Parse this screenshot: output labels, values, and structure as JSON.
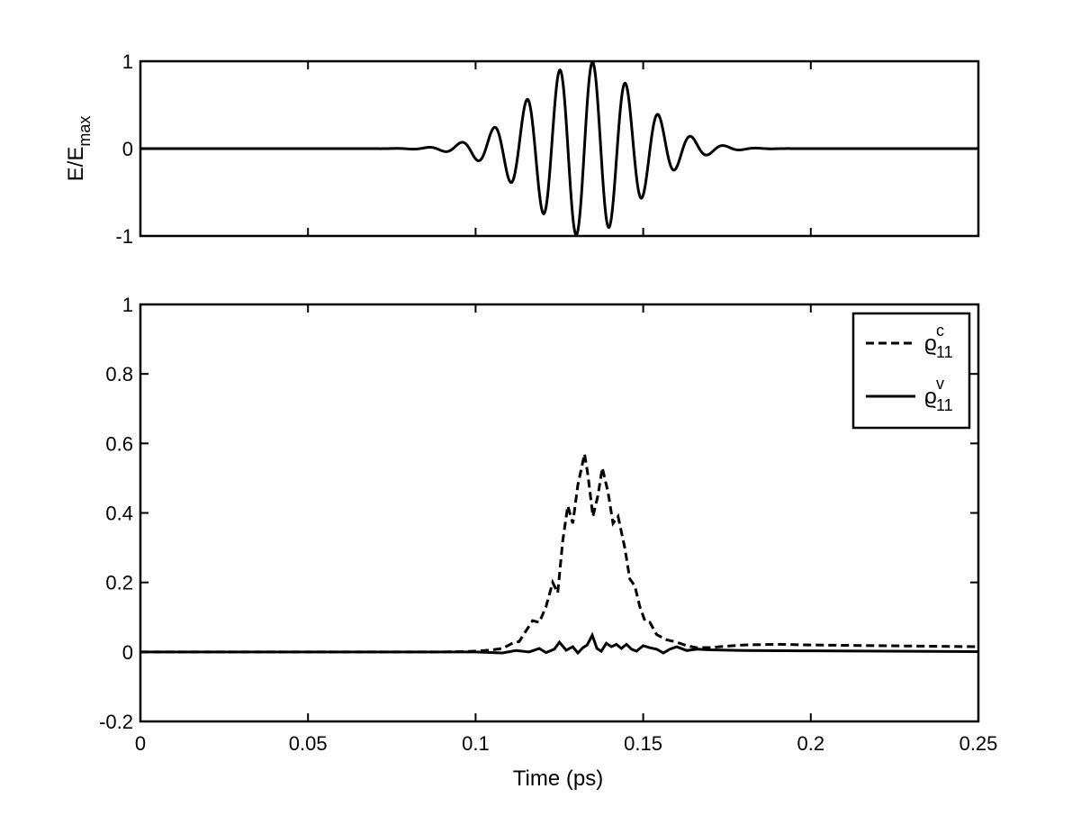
{
  "chart_data": [
    {
      "type": "line",
      "panel": "top",
      "ylabel_main": "E/E",
      "ylabel_sub": "max",
      "xlim": [
        0,
        0.25
      ],
      "ylim": [
        -1,
        1
      ],
      "xticks": [
        0,
        0.05,
        0.1,
        0.15,
        0.2,
        0.25
      ],
      "yticks": [
        -1,
        0,
        1
      ],
      "ytick_labels": [
        "-1",
        "0",
        "1"
      ],
      "grid": false,
      "line_color": "#000000",
      "series": [
        {
          "style": "solid",
          "pulse": {
            "center": 0.1325,
            "sigma": 0.016,
            "period": 0.0098,
            "phase_offset": 0.0024
          }
        }
      ]
    },
    {
      "type": "line",
      "panel": "bottom",
      "xlabel": "Time (ps)",
      "xlim": [
        0,
        0.25
      ],
      "ylim": [
        -0.2,
        1
      ],
      "xticks": [
        0,
        0.05,
        0.1,
        0.15,
        0.2,
        0.25
      ],
      "xtick_labels": [
        "0",
        "0.05",
        "0.1",
        "0.15",
        "0.2",
        "0.25"
      ],
      "yticks": [
        -0.2,
        0,
        0.2,
        0.4,
        0.6,
        0.8,
        1
      ],
      "ytick_labels": [
        "-0.2",
        "0",
        "0.2",
        "0.4",
        "0.6",
        "0.8",
        "1"
      ],
      "grid": false,
      "legend": {
        "placement": "top-right",
        "entries": [
          {
            "symbol": "ϱ",
            "sup": "c",
            "sub": "11",
            "style": "dashed"
          },
          {
            "symbol": "ϱ",
            "sup": "v",
            "sub": "11",
            "style": "solid"
          }
        ]
      },
      "series": [
        {
          "style": "dashed",
          "points": [
            [
              0,
              0
            ],
            [
              0.09,
              0
            ],
            [
              0.1,
              0.002
            ],
            [
              0.105,
              0.006
            ],
            [
              0.108,
              0.01
            ],
            [
              0.111,
              0.025
            ],
            [
              0.113,
              0.03
            ],
            [
              0.115,
              0.06
            ],
            [
              0.117,
              0.09
            ],
            [
              0.119,
              0.085
            ],
            [
              0.121,
              0.13
            ],
            [
              0.123,
              0.2
            ],
            [
              0.1245,
              0.17
            ],
            [
              0.126,
              0.32
            ],
            [
              0.1275,
              0.42
            ],
            [
              0.129,
              0.37
            ],
            [
              0.1305,
              0.48
            ],
            [
              0.1325,
              0.57
            ],
            [
              0.1335,
              0.51
            ],
            [
              0.135,
              0.39
            ],
            [
              0.1365,
              0.45
            ],
            [
              0.1378,
              0.53
            ],
            [
              0.1395,
              0.46
            ],
            [
              0.141,
              0.37
            ],
            [
              0.1425,
              0.39
            ],
            [
              0.1445,
              0.3
            ],
            [
              0.146,
              0.21
            ],
            [
              0.1475,
              0.19
            ],
            [
              0.149,
              0.13
            ],
            [
              0.1505,
              0.09
            ],
            [
              0.152,
              0.085
            ],
            [
              0.154,
              0.05
            ],
            [
              0.157,
              0.035
            ],
            [
              0.16,
              0.028
            ],
            [
              0.163,
              0.018
            ],
            [
              0.166,
              0.012
            ],
            [
              0.17,
              0.013
            ],
            [
              0.18,
              0.02
            ],
            [
              0.19,
              0.022
            ],
            [
              0.2,
              0.02
            ],
            [
              0.22,
              0.018
            ],
            [
              0.24,
              0.016
            ],
            [
              0.25,
              0.015
            ]
          ]
        },
        {
          "style": "solid",
          "points": [
            [
              0,
              0
            ],
            [
              0.1,
              0
            ],
            [
              0.108,
              -0.003
            ],
            [
              0.112,
              0.004
            ],
            [
              0.116,
              0
            ],
            [
              0.119,
              0.01
            ],
            [
              0.121,
              -0.002
            ],
            [
              0.1235,
              0.008
            ],
            [
              0.125,
              0.028
            ],
            [
              0.127,
              0.005
            ],
            [
              0.129,
              0.015
            ],
            [
              0.1305,
              -0.003
            ],
            [
              0.132,
              0.012
            ],
            [
              0.1333,
              0.02
            ],
            [
              0.1348,
              0.048
            ],
            [
              0.1362,
              0.01
            ],
            [
              0.1375,
              0.002
            ],
            [
              0.139,
              0.025
            ],
            [
              0.1405,
              0.015
            ],
            [
              0.142,
              0.022
            ],
            [
              0.1435,
              0.01
            ],
            [
              0.145,
              0.022
            ],
            [
              0.1465,
              0.008
            ],
            [
              0.148,
              0.002
            ],
            [
              0.15,
              0.018
            ],
            [
              0.152,
              0.012
            ],
            [
              0.154,
              0.008
            ],
            [
              0.156,
              -0.003
            ],
            [
              0.158,
              0.008
            ],
            [
              0.16,
              0.015
            ],
            [
              0.163,
              0.004
            ],
            [
              0.166,
              0.008
            ],
            [
              0.17,
              0.006
            ],
            [
              0.18,
              0.004
            ],
            [
              0.2,
              0.003
            ],
            [
              0.25,
              0.001
            ]
          ]
        }
      ]
    }
  ]
}
